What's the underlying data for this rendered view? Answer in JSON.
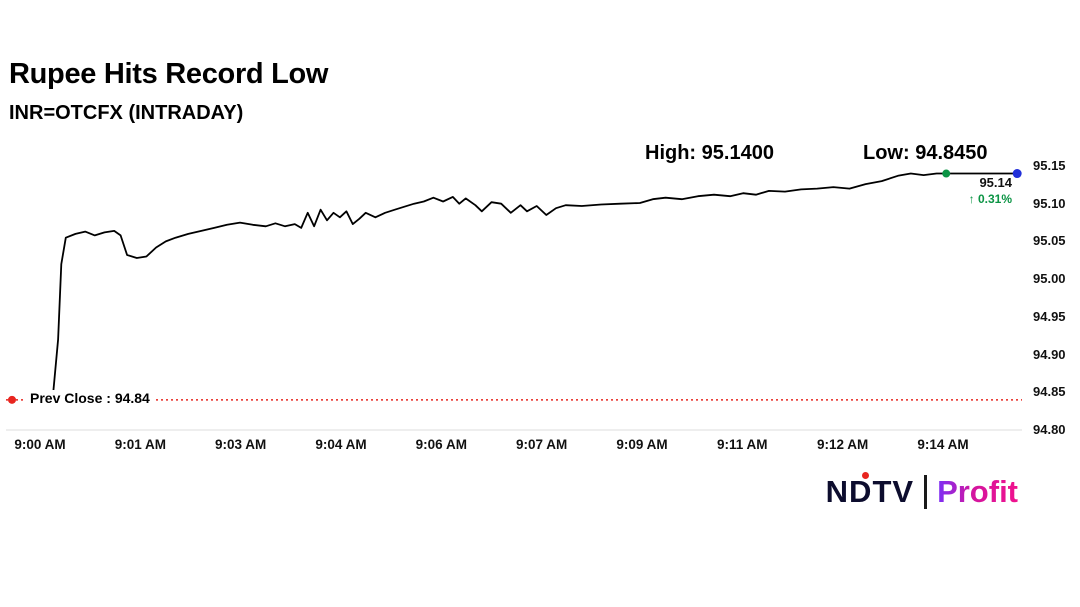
{
  "title": "Rupee Hits Record Low",
  "subtitle": "INR=OTCFX (INTRADAY)",
  "annotations": {
    "high_label": "High: 95.1400",
    "low_label": "Low: 94.8450",
    "last_price": "95.14",
    "change_display": "↑ 0.31%",
    "prev_close_label": "Prev Close : 94.84"
  },
  "colors": {
    "line": "#000000",
    "prev_close_red": "#e8251f",
    "gain_green": "#0b9444",
    "latest_dot_blue": "#2230d9",
    "axis_gray": "#dcdcdc",
    "brand_pink": "#f0128d",
    "brand_purple": "#7b2ff7"
  },
  "logo": {
    "ndtv": "NDTV",
    "separator": "|",
    "profit": "Profit"
  },
  "chart_data": {
    "type": "line",
    "title": "Rupee Hits Record Low",
    "subtitle": "INR=OTCFX (INTRADAY)",
    "x_unit": "minutes after 9:00 AM",
    "x_tick_labels": [
      "9:00 AM",
      "9:01 AM",
      "9:03 AM",
      "9:04 AM",
      "9:06 AM",
      "9:07 AM",
      "9:09 AM",
      "9:11 AM",
      "9:12 AM",
      "9:14 AM"
    ],
    "y_tick_labels": [
      "95.15",
      "95.10",
      "95.05",
      "95.00",
      "94.95",
      "94.90",
      "94.85",
      "94.80"
    ],
    "y_tick_values": [
      95.15,
      95.1,
      95.05,
      95.0,
      94.95,
      94.9,
      94.85,
      94.8
    ],
    "ylim": [
      94.8,
      95.15
    ],
    "xlim_minutes": [
      0,
      15.2
    ],
    "grid": false,
    "legend": false,
    "high": 95.14,
    "low": 94.845,
    "last": 95.14,
    "change_pct": 0.31,
    "prev_close": 94.84,
    "series": [
      {
        "name": "INR=OTCFX",
        "points": [
          [
            0,
            94.845
          ],
          [
            0.2,
            94.845
          ],
          [
            0.28,
            94.92
          ],
          [
            0.33,
            95.02
          ],
          [
            0.4,
            95.055
          ],
          [
            0.55,
            95.06
          ],
          [
            0.7,
            95.063
          ],
          [
            0.85,
            95.058
          ],
          [
            1.0,
            95.062
          ],
          [
            1.15,
            95.064
          ],
          [
            1.25,
            95.058
          ],
          [
            1.35,
            95.032
          ],
          [
            1.5,
            95.028
          ],
          [
            1.65,
            95.03
          ],
          [
            1.8,
            95.042
          ],
          [
            1.95,
            95.05
          ],
          [
            2.1,
            95.055
          ],
          [
            2.3,
            95.06
          ],
          [
            2.5,
            95.064
          ],
          [
            2.7,
            95.068
          ],
          [
            2.9,
            95.072
          ],
          [
            3.1,
            95.075
          ],
          [
            3.3,
            95.072
          ],
          [
            3.5,
            95.07
          ],
          [
            3.65,
            95.074
          ],
          [
            3.8,
            95.07
          ],
          [
            3.95,
            95.073
          ],
          [
            4.05,
            95.068
          ],
          [
            4.15,
            95.088
          ],
          [
            4.25,
            95.07
          ],
          [
            4.35,
            95.092
          ],
          [
            4.45,
            95.078
          ],
          [
            4.55,
            95.088
          ],
          [
            4.65,
            95.082
          ],
          [
            4.75,
            95.09
          ],
          [
            4.85,
            95.073
          ],
          [
            4.95,
            95.08
          ],
          [
            5.05,
            95.088
          ],
          [
            5.2,
            95.082
          ],
          [
            5.35,
            95.088
          ],
          [
            5.5,
            95.092
          ],
          [
            5.65,
            95.096
          ],
          [
            5.8,
            95.1
          ],
          [
            5.95,
            95.103
          ],
          [
            6.1,
            95.108
          ],
          [
            6.25,
            95.103
          ],
          [
            6.4,
            95.109
          ],
          [
            6.5,
            95.1
          ],
          [
            6.6,
            95.107
          ],
          [
            6.75,
            95.098
          ],
          [
            6.85,
            95.09
          ],
          [
            7.0,
            95.102
          ],
          [
            7.15,
            95.1
          ],
          [
            7.3,
            95.088
          ],
          [
            7.45,
            95.098
          ],
          [
            7.55,
            95.09
          ],
          [
            7.7,
            95.097
          ],
          [
            7.85,
            95.085
          ],
          [
            8.0,
            95.094
          ],
          [
            8.15,
            95.098
          ],
          [
            8.4,
            95.097
          ],
          [
            8.7,
            95.099
          ],
          [
            9.0,
            95.1
          ],
          [
            9.3,
            95.101
          ],
          [
            9.5,
            95.106
          ],
          [
            9.7,
            95.108
          ],
          [
            9.95,
            95.106
          ],
          [
            10.2,
            95.11
          ],
          [
            10.45,
            95.112
          ],
          [
            10.7,
            95.11
          ],
          [
            10.9,
            95.114
          ],
          [
            11.1,
            95.112
          ],
          [
            11.3,
            95.117
          ],
          [
            11.55,
            95.116
          ],
          [
            11.8,
            95.119
          ],
          [
            12.05,
            95.12
          ],
          [
            12.3,
            95.122
          ],
          [
            12.55,
            95.12
          ],
          [
            12.8,
            95.126
          ],
          [
            13.05,
            95.13
          ],
          [
            13.3,
            95.137
          ],
          [
            13.5,
            95.14
          ],
          [
            13.7,
            95.138
          ],
          [
            13.9,
            95.14
          ],
          [
            14.05,
            95.14
          ],
          [
            15.15,
            95.14
          ]
        ]
      }
    ],
    "markers": {
      "prev_close_dot": [
        0,
        94.84
      ],
      "last_trade_dot": [
        14.05,
        95.14
      ],
      "latest_dot": [
        15.15,
        95.14
      ]
    }
  }
}
